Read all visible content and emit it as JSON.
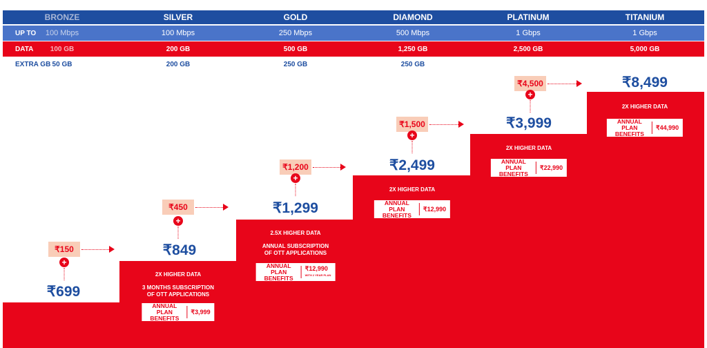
{
  "header": {
    "tiers": [
      "BRONZE",
      "SILVER",
      "GOLD",
      "DIAMOND",
      "PLATINUM",
      "TITANIUM"
    ],
    "speed_label": "UP TO",
    "speeds": [
      "100 Mbps",
      "100 Mbps",
      "250 Mbps",
      "500 Mbps",
      "1 Gbps",
      "1 Gbps"
    ],
    "data_label": "DATA",
    "data": [
      "100 GB",
      "200 GB",
      "500 GB",
      "1,250 GB",
      "2,500 GB",
      "5,000 GB"
    ],
    "extra_label": "EXTRA GB",
    "extra": [
      "50 GB",
      "200 GB",
      "250 GB",
      "250 GB"
    ]
  },
  "plans": [
    {
      "price": "₹699",
      "addon": "₹150"
    },
    {
      "price": "₹849",
      "addon": "₹450",
      "benefit1": "2X HIGHER DATA",
      "benefit2": "3 MONTHS SUBSCRIPTION",
      "benefit3": "OF OTT APPLICATIONS",
      "annual_label": "ANNUAL PLAN BENEFITS",
      "annual_value": "₹3,999"
    },
    {
      "price": "₹1,299",
      "addon": "₹1,200",
      "benefit1": "2.5X HIGHER DATA",
      "benefit2": "ANNUAL SUBSCRIPTION",
      "benefit3": "OF OTT APPLICATIONS",
      "annual_label": "ANNUAL PLAN BENEFITS",
      "annual_value": "₹12,990",
      "annual_note": "WITH 2 YEAR PLAN"
    },
    {
      "price": "₹2,499",
      "addon": "₹1,500",
      "benefit1": "2X HIGHER DATA",
      "annual_label": "ANNUAL PLAN BENEFITS",
      "annual_value": "₹12,990"
    },
    {
      "price": "₹3,999",
      "addon": "₹4,500",
      "benefit1": "2X HIGHER DATA",
      "annual_label": "ANNUAL PLAN BENEFITS",
      "annual_value": "₹22,990"
    },
    {
      "price": "₹8,499",
      "benefit1": "2X HIGHER DATA",
      "annual_label": "ANNUAL PLAN BENEFITS",
      "annual_value": "₹44,990"
    }
  ],
  "colors": {
    "red": "#e8051a",
    "blue": "#1e4ea0",
    "light_blue": "#4a74c9",
    "peach": "#f9cdb8"
  }
}
